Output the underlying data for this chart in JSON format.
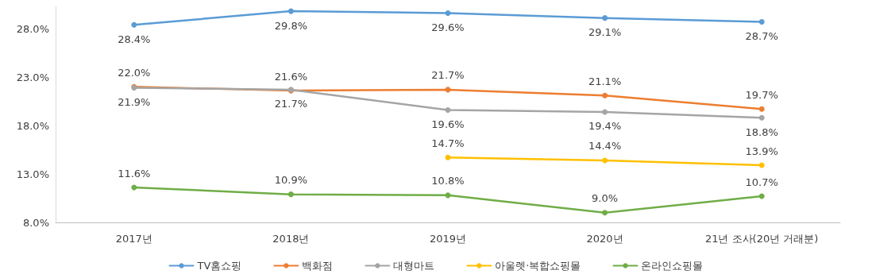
{
  "chart_data": {
    "type": "line",
    "categories": [
      "2017년",
      "2018년",
      "2019년",
      "2020년",
      "21년 조사(20년 거래분)"
    ],
    "series": [
      {
        "name": "TV홈쇼핑",
        "color": "#5b9bd5",
        "values": [
          28.4,
          29.8,
          29.6,
          29.1,
          28.7
        ],
        "value_labels": [
          "28.4%",
          "29.8%",
          "29.6%",
          "29.1%",
          "28.7%"
        ]
      },
      {
        "name": "백화점",
        "color": "#ed7d31",
        "values": [
          22.0,
          21.6,
          21.7,
          21.1,
          19.7
        ],
        "value_labels": [
          "22.0%",
          "21.6%",
          "21.7%",
          "21.1%",
          "19.7%"
        ]
      },
      {
        "name": "대형마트",
        "color": "#a5a5a5",
        "values": [
          21.9,
          21.7,
          19.6,
          19.4,
          18.8
        ],
        "value_labels": [
          "21.9%",
          "21.7%",
          "19.6%",
          "19.4%",
          "18.8%"
        ]
      },
      {
        "name": "아울렛·복합쇼핑몰",
        "color": "#ffc000",
        "values": [
          null,
          null,
          14.7,
          14.4,
          13.9
        ],
        "value_labels": [
          null,
          null,
          "14.7%",
          "14.4%",
          "13.9%"
        ]
      },
      {
        "name": "온라인쇼핑몰",
        "color": "#70ad47",
        "values": [
          11.6,
          10.9,
          10.8,
          9.0,
          10.7
        ],
        "value_labels": [
          "11.6%",
          "10.9%",
          "10.8%",
          "9.0%",
          "10.7%"
        ]
      }
    ],
    "ylim": [
      8,
      30.3
    ],
    "yticks": [
      {
        "value": 8,
        "label": "8.0%"
      },
      {
        "value": 13,
        "label": "13.0%"
      },
      {
        "value": 18,
        "label": "18.0%"
      },
      {
        "value": 23,
        "label": "23.0%"
      },
      {
        "value": 28,
        "label": "28.0%"
      }
    ],
    "grid": false,
    "legend": "bottom",
    "marker": "circle",
    "line_style": "solid"
  }
}
